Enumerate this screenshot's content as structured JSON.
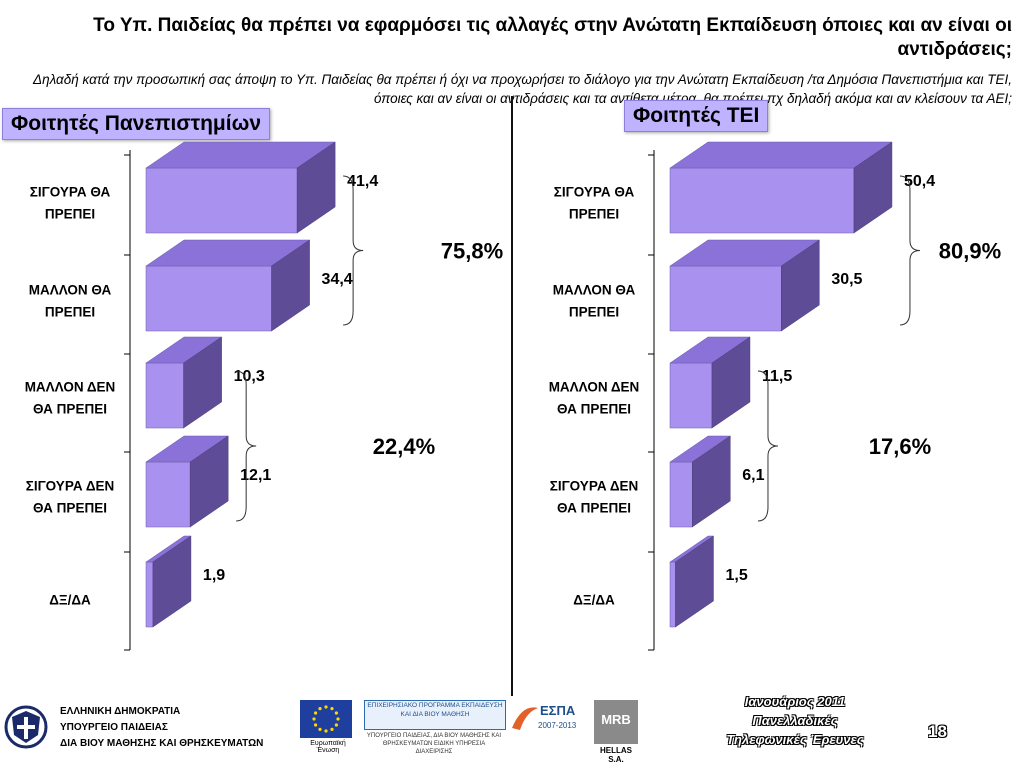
{
  "title": "Το Υπ. Παιδείας θα πρέπει να εφαρμόσει τις αλλαγές στην Ανώτατη Εκπαίδευση όποιες και αν είναι οι αντιδράσεις;",
  "subtitle": "Δηλαδή κατά την προσωπική σας άποψη το Υπ. Παιδείας θα πρέπει ή όχι να προχωρήσει το διάλογο για την Ανώτατη Εκπαίδευση /τα Δημόσια Πανεπιστήμια και ΤΕΙ, όποιες και αν είναι οι αντιδράσεις και τα αντίθετα μέτρα, θα πρέπει πχ δηλαδή ακόμα και αν κλείσουν τα ΑΕΙ;",
  "colors": {
    "bar_front": "#a992ef",
    "bar_top": "#8a72d9",
    "bar_side": "#5e4c96",
    "panel_label_bg": "#bfb3ff"
  },
  "chart_data": [
    {
      "type": "bar",
      "title": "Φοιτητές Πανεπιστημίων",
      "orientation": "horizontal",
      "categories": [
        "ΣΙΓΟΥΡΑ ΘΑ ΠΡΕΠΕΙ",
        "ΜΑΛΛΟΝ ΘΑ ΠΡΕΠΕΙ",
        "ΜΑΛΛΟΝ ΔΕΝ ΘΑ ΠΡΕΠΕΙ",
        "ΣΙΓΟΥΡΑ ΔΕΝ ΘΑ ΠΡΕΠΕΙ",
        "ΔΞ/ΔΑ"
      ],
      "values": [
        41.4,
        34.4,
        10.3,
        12.1,
        1.9
      ],
      "value_labels": [
        "41,4",
        "34,4",
        "10,3",
        "12,1",
        "1,9"
      ],
      "groups": [
        {
          "label": "75,8%",
          "from": 0,
          "to": 1
        },
        {
          "label": "22,4%",
          "from": 2,
          "to": 3
        }
      ]
    },
    {
      "type": "bar",
      "title": "Φοιτητές ΤΕΙ",
      "orientation": "horizontal",
      "categories": [
        "ΣΙΓΟΥΡΑ ΘΑ ΠΡΕΠΕΙ",
        "ΜΑΛΛΟΝ ΘΑ ΠΡΕΠΕΙ",
        "ΜΑΛΛΟΝ ΔΕΝ ΘΑ ΠΡΕΠΕΙ",
        "ΣΙΓΟΥΡΑ ΔΕΝ ΘΑ ΠΡΕΠΕΙ",
        "ΔΞ/ΔΑ"
      ],
      "values": [
        50.4,
        30.5,
        11.5,
        6.1,
        1.5
      ],
      "value_labels": [
        "50,4",
        "30,5",
        "11,5",
        "6,1",
        "1,5"
      ],
      "groups": [
        {
          "label": "80,9%",
          "from": 0,
          "to": 1
        },
        {
          "label": "17,6%",
          "from": 2,
          "to": 3
        }
      ]
    }
  ],
  "footer": {
    "ministry_lines": [
      "ΕΛΛΗΝΙΚΗ ΔΗΜΟΚΡΑΤΙΑ",
      "ΥΠΟΥΡΓΕΙΟ ΠΑΙΔΕΙΑΣ",
      "ΔΙΑ ΒΙΟΥ ΜΑΘΗΣΗΣ ΚΑΙ ΘΡΗΣΚΕΥΜΑΤΩΝ"
    ],
    "eu_caption": "Ευρωπαϊκή Ένωση",
    "program_text": "ΕΠΙΧΕΙΡΗΣΙΑΚΟ ΠΡΟΓΡΑΜΜΑ ΕΚΠΑΙΔΕΥΣΗ ΚΑΙ ΔΙΑ ΒΙΟΥ ΜΑΘΗΣΗ",
    "program_caption": "ΥΠΟΥΡΓΕΙΟ ΠΑΙΔΕΙΑΣ, ΔΙΑ ΒΙΟΥ ΜΑΘΗΣΗΣ ΚΑΙ ΘΡΗΣΚΕΥΜΑΤΩΝ ΕΙΔΙΚΗ ΥΠΗΡΕΣΙΑ ΔΙΑΧΕΙΡΙΣΗΣ",
    "espa_text": "ΕΣΠΑ",
    "espa_years": "2007-2013",
    "mrb_text": "MRB",
    "mrb_caption": "HELLAS S.A.",
    "survey_lines": [
      "Ιανουάριος 2011",
      "Πανελλαδικές",
      "Τηλεφωνικές Έρευνες"
    ],
    "page_number": "18"
  }
}
